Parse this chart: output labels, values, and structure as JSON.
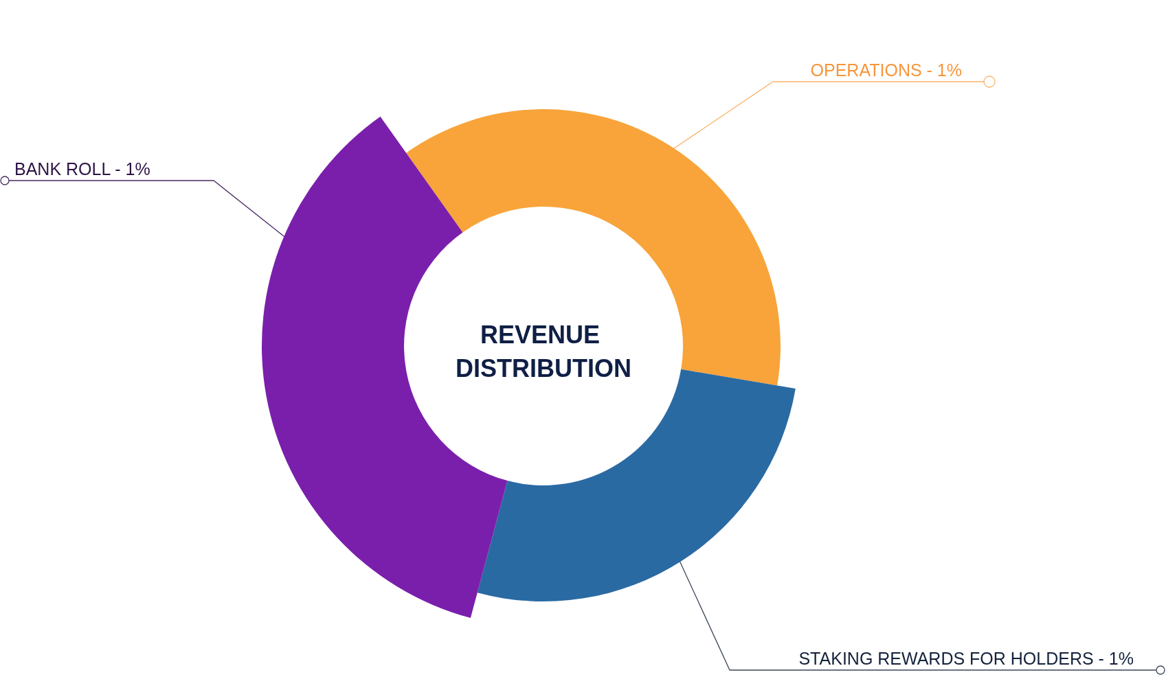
{
  "chart_data": {
    "type": "donut",
    "title": "REVENUE DISTRIBUTION",
    "categories": [
      "OPERATIONS - 1%",
      "STAKING REWARDS FOR HOLDERS - 1%",
      "BANK ROLL - 1%"
    ],
    "values": [
      37.5,
      26.5,
      36
    ],
    "colors": [
      "#f8a43a",
      "#2a6aa3",
      "#7a1fab"
    ],
    "legend": false
  }
}
